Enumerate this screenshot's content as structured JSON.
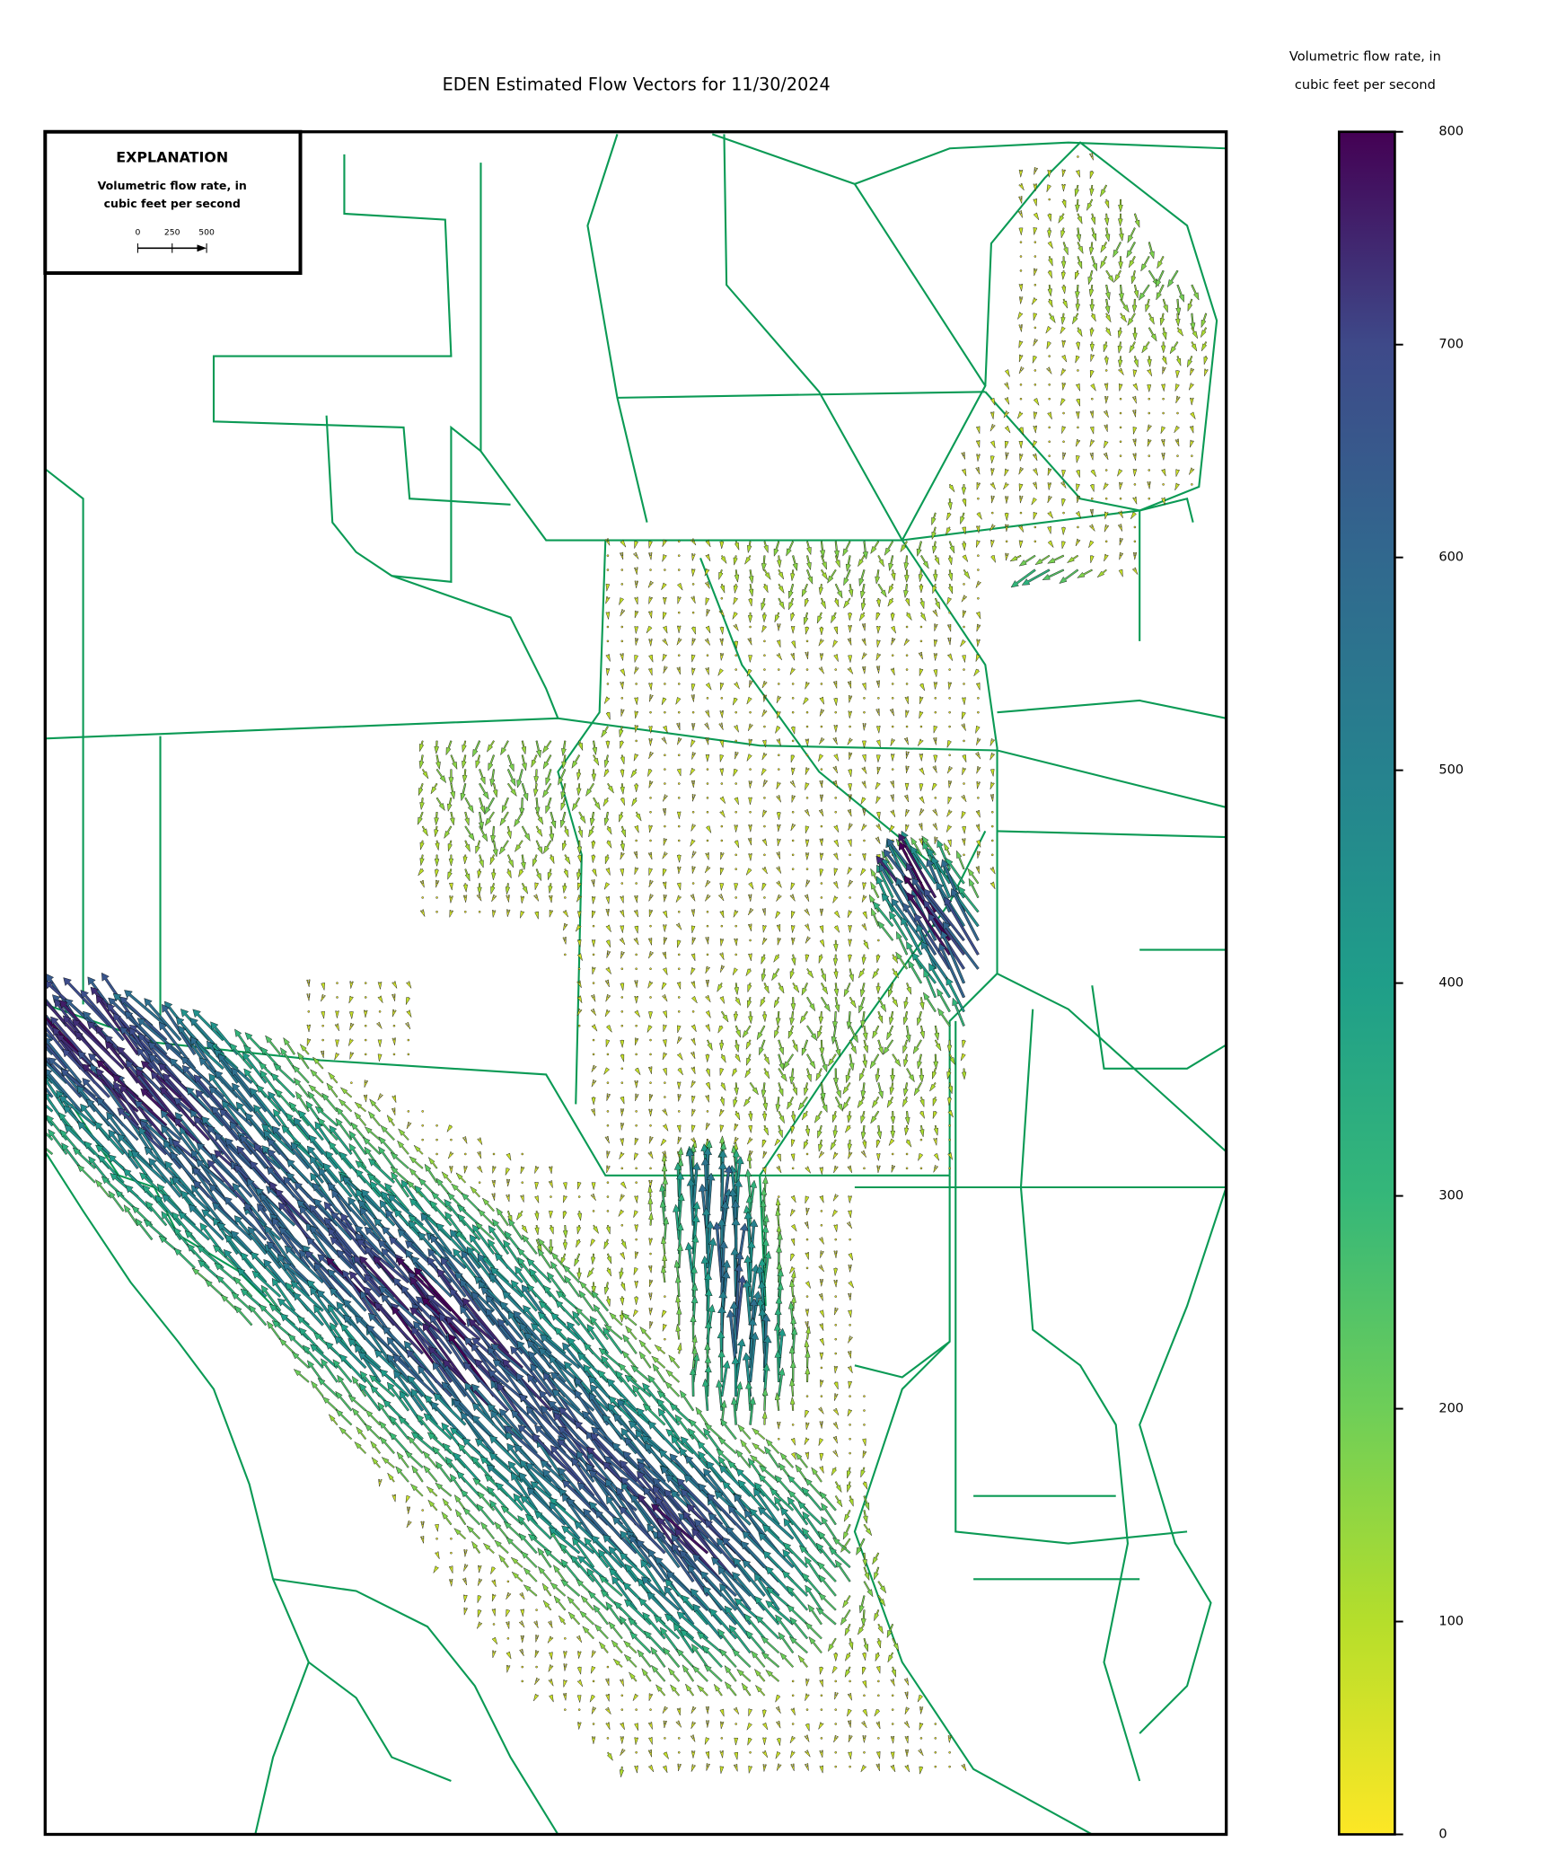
{
  "chart_data": {
    "type": "quiver",
    "title": "EDEN Estimated Flow Vectors for 11/30/2024",
    "colorbar": {
      "label": [
        "Volumetric flow rate, in",
        "cubic feet per second"
      ],
      "lim": [
        0,
        800
      ],
      "ticks": [
        0,
        100,
        200,
        300,
        400,
        500,
        600,
        700,
        800
      ],
      "colors": [
        "#fde725",
        "#b5de2b",
        "#6ece58",
        "#35b779",
        "#1f9e89",
        "#26828e",
        "#31688e",
        "#3e4989",
        "#440154"
      ]
    },
    "explanation": {
      "title": "EXPLANATION",
      "label": [
        "Volumetric flow rate, in",
        "cubic feet per second"
      ],
      "scale_ticks": [
        0,
        250,
        500
      ]
    }
  }
}
